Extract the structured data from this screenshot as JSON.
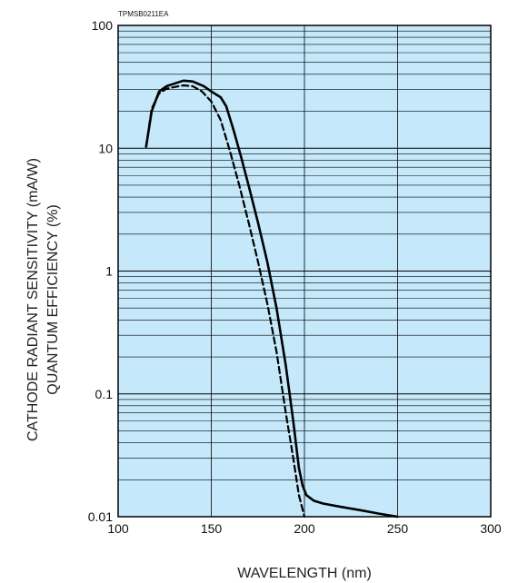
{
  "chart_data": {
    "type": "line",
    "code": "TPMSB0211EA",
    "xlabel": "WAVELENGTH (nm)",
    "ylabel_lines": [
      "CATHODE RADIANT SENSITIVITY (mA/W)",
      "QUANTUM EFFICIENCY (%)"
    ],
    "xlim": [
      100,
      300
    ],
    "ylim": [
      0.01,
      100
    ],
    "yscale": "log",
    "grid": true,
    "background_color": "#c5e9fa",
    "line_color": "#000000",
    "x_ticks": [
      "100",
      "150",
      "200",
      "250",
      "300"
    ],
    "y_ticks": [
      "0.01",
      "0.1",
      "1",
      "10",
      "100"
    ],
    "series": [
      {
        "style": "solid",
        "x": [
          115,
          118,
          122,
          126,
          130,
          135,
          140,
          146,
          150,
          155,
          158,
          162,
          166,
          170,
          175,
          180,
          185,
          190,
          194,
          197,
          199,
          201,
          205,
          210,
          220,
          230,
          240,
          250
        ],
        "y": [
          10.3,
          20,
          29,
          32,
          33.5,
          35.5,
          35,
          32,
          29,
          26,
          22,
          14,
          8.5,
          5,
          2.5,
          1.2,
          0.5,
          0.17,
          0.06,
          0.025,
          0.018,
          0.015,
          0.0135,
          0.0128,
          0.012,
          0.0113,
          0.0106,
          0.01
        ]
      },
      {
        "style": "dashed",
        "x": [
          115,
          118,
          122,
          126,
          130,
          135,
          140,
          145,
          150,
          155,
          160,
          165,
          170,
          175,
          180,
          185,
          190,
          194,
          197,
          200
        ],
        "y": [
          10.3,
          21,
          28,
          30.5,
          31.5,
          32.5,
          32,
          29,
          24,
          17,
          9.5,
          5,
          2.5,
          1.2,
          0.55,
          0.22,
          0.07,
          0.03,
          0.015,
          0.01
        ]
      }
    ]
  }
}
